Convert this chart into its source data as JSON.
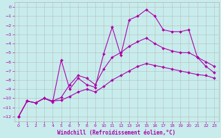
{
  "title": "",
  "xlabel": "Windchill (Refroidissement éolien,°C)",
  "ylabel": "",
  "bg_color": "#c8ecec",
  "grid_color": "#b0b0b0",
  "line_color": "#aa00aa",
  "xlim": [
    -0.5,
    23.5
  ],
  "ylim": [
    -12.5,
    0.5
  ],
  "xticks": [
    0,
    1,
    2,
    3,
    4,
    5,
    6,
    7,
    8,
    9,
    10,
    11,
    12,
    13,
    14,
    15,
    16,
    17,
    18,
    19,
    20,
    21,
    22,
    23
  ],
  "yticks": [
    0,
    -1,
    -2,
    -3,
    -4,
    -5,
    -6,
    -7,
    -8,
    -9,
    -10,
    -11,
    -12
  ],
  "series1_x": [
    0,
    1,
    2,
    3,
    4,
    5,
    6,
    7,
    8,
    9,
    10,
    11,
    12,
    13,
    14,
    15,
    16,
    17,
    18,
    19,
    20,
    21,
    22,
    23
  ],
  "series1_y": [
    -12.0,
    -10.3,
    -10.5,
    -10.0,
    -10.4,
    -5.8,
    -9.0,
    -7.8,
    -8.5,
    -8.8,
    -5.1,
    -2.2,
    -5.3,
    -1.4,
    -1.0,
    -0.3,
    -1.0,
    -2.5,
    -2.7,
    -2.7,
    -2.5,
    -5.5,
    -6.5,
    -7.2
  ],
  "series2_x": [
    0,
    1,
    2,
    3,
    4,
    5,
    6,
    7,
    8,
    9,
    10,
    11,
    12,
    13,
    14,
    15,
    16,
    17,
    18,
    19,
    20,
    21,
    22,
    23
  ],
  "series2_y": [
    -12.0,
    -10.3,
    -10.5,
    -10.0,
    -10.3,
    -9.9,
    -8.5,
    -7.5,
    -7.8,
    -8.5,
    -6.8,
    -5.5,
    -5.0,
    -4.3,
    -3.8,
    -3.4,
    -4.0,
    -4.5,
    -4.8,
    -5.0,
    -5.0,
    -5.5,
    -6.0,
    -6.5
  ],
  "series3_x": [
    0,
    1,
    2,
    3,
    4,
    5,
    6,
    7,
    8,
    9,
    10,
    11,
    12,
    13,
    14,
    15,
    16,
    17,
    18,
    19,
    20,
    21,
    22,
    23
  ],
  "series3_y": [
    -12.0,
    -10.3,
    -10.5,
    -10.0,
    -10.3,
    -10.2,
    -9.8,
    -9.3,
    -9.0,
    -9.3,
    -8.7,
    -8.0,
    -7.5,
    -7.0,
    -6.5,
    -6.2,
    -6.4,
    -6.6,
    -6.8,
    -7.0,
    -7.2,
    -7.4,
    -7.5,
    -7.8
  ]
}
